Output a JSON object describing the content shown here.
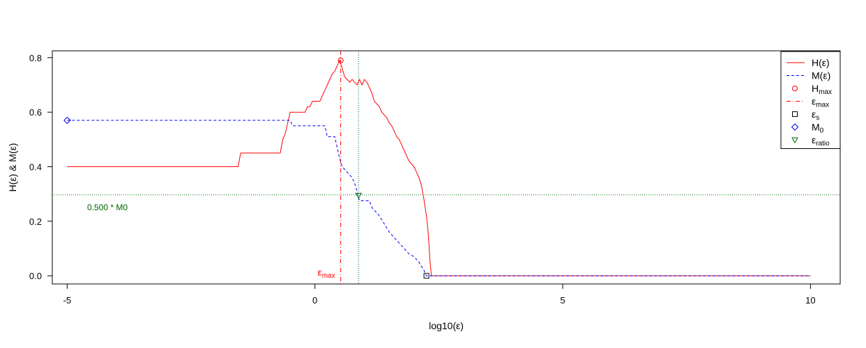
{
  "chart_data": {
    "type": "line",
    "xlabel": "log10(ε)",
    "ylabel": "H(ε)  &  M(ε)",
    "xlim": [
      -5.3,
      10.6
    ],
    "ylim": [
      -0.03,
      0.825
    ],
    "xticks": [
      -5,
      0,
      5,
      10
    ],
    "xtick_labels": [
      "-5",
      "0",
      "5",
      "10"
    ],
    "yticks": [
      0.0,
      0.2,
      0.4,
      0.6,
      0.8
    ],
    "ytick_labels": [
      "0.0",
      "0.2",
      "0.4",
      "0.6",
      "0.8"
    ],
    "grid": false,
    "legend_position": "top-right",
    "series": [
      {
        "key": "H",
        "name": "H(ε)",
        "color": "#ff0000",
        "style": "solid",
        "points": [
          [
            -5.0,
            0.4
          ],
          [
            -1.55,
            0.4
          ],
          [
            -1.5,
            0.45
          ],
          [
            -0.7,
            0.45
          ],
          [
            -0.68,
            0.47
          ],
          [
            -0.65,
            0.5
          ],
          [
            -0.6,
            0.52
          ],
          [
            -0.55,
            0.56
          ],
          [
            -0.5,
            0.6
          ],
          [
            -0.2,
            0.6
          ],
          [
            -0.15,
            0.62
          ],
          [
            -0.1,
            0.62
          ],
          [
            -0.05,
            0.64
          ],
          [
            0.1,
            0.64
          ],
          [
            0.15,
            0.66
          ],
          [
            0.2,
            0.68
          ],
          [
            0.25,
            0.7
          ],
          [
            0.3,
            0.72
          ],
          [
            0.35,
            0.74
          ],
          [
            0.4,
            0.75
          ],
          [
            0.45,
            0.77
          ],
          [
            0.5,
            0.79
          ],
          [
            0.55,
            0.76
          ],
          [
            0.6,
            0.73
          ],
          [
            0.65,
            0.72
          ],
          [
            0.7,
            0.71
          ],
          [
            0.75,
            0.72
          ],
          [
            0.8,
            0.71
          ],
          [
            0.85,
            0.7
          ],
          [
            0.9,
            0.72
          ],
          [
            0.95,
            0.7
          ],
          [
            1.0,
            0.72
          ],
          [
            1.05,
            0.71
          ],
          [
            1.1,
            0.69
          ],
          [
            1.15,
            0.67
          ],
          [
            1.2,
            0.64
          ],
          [
            1.3,
            0.62
          ],
          [
            1.35,
            0.6
          ],
          [
            1.45,
            0.58
          ],
          [
            1.5,
            0.56
          ],
          [
            1.55,
            0.55
          ],
          [
            1.6,
            0.53
          ],
          [
            1.65,
            0.51
          ],
          [
            1.7,
            0.5
          ],
          [
            1.75,
            0.48
          ],
          [
            1.8,
            0.46
          ],
          [
            1.85,
            0.44
          ],
          [
            1.9,
            0.42
          ],
          [
            1.95,
            0.41
          ],
          [
            2.0,
            0.4
          ],
          [
            2.05,
            0.38
          ],
          [
            2.1,
            0.36
          ],
          [
            2.15,
            0.33
          ],
          [
            2.2,
            0.28
          ],
          [
            2.25,
            0.22
          ],
          [
            2.28,
            0.17
          ],
          [
            2.3,
            0.12
          ],
          [
            2.32,
            0.06
          ],
          [
            2.35,
            0.0
          ],
          [
            10.0,
            0.0
          ]
        ]
      },
      {
        "key": "M",
        "name": "M(ε)",
        "color": "#0000ff",
        "style": "dashed",
        "points": [
          [
            -5.0,
            0.57
          ],
          [
            -0.5,
            0.57
          ],
          [
            -0.45,
            0.55
          ],
          [
            0.2,
            0.55
          ],
          [
            0.25,
            0.51
          ],
          [
            0.4,
            0.51
          ],
          [
            0.45,
            0.47
          ],
          [
            0.5,
            0.43
          ],
          [
            0.55,
            0.4
          ],
          [
            0.65,
            0.38
          ],
          [
            0.75,
            0.36
          ],
          [
            0.8,
            0.34
          ],
          [
            0.85,
            0.31
          ],
          [
            0.9,
            0.275
          ],
          [
            1.1,
            0.275
          ],
          [
            1.15,
            0.25
          ],
          [
            1.3,
            0.22
          ],
          [
            1.4,
            0.19
          ],
          [
            1.5,
            0.16
          ],
          [
            1.6,
            0.14
          ],
          [
            1.7,
            0.12
          ],
          [
            1.8,
            0.1
          ],
          [
            1.9,
            0.08
          ],
          [
            2.0,
            0.07
          ],
          [
            2.1,
            0.05
          ],
          [
            2.2,
            0.02
          ],
          [
            2.25,
            0.0
          ],
          [
            10.0,
            0.0
          ]
        ]
      }
    ],
    "markers": {
      "Hmax": {
        "x": 0.52,
        "y": 0.79,
        "color": "#ff0000"
      },
      "eps_s": {
        "x": 2.25,
        "y": 0.0,
        "color": "#000000"
      },
      "M0": {
        "x": -5.0,
        "y": 0.57,
        "color": "#0000ff"
      },
      "eps_ratio": {
        "x": 0.88,
        "y": 0.295,
        "color": "#006400"
      }
    },
    "reference_lines": {
      "eps_max_x": 0.52,
      "eps_ratio_x": 0.88,
      "half_M0_y": 0.297
    },
    "annotations": {
      "half_M0_label": "0.500 * M0",
      "eps_max_label": "ε",
      "eps_max_sub": "max"
    },
    "legend": {
      "entries": [
        {
          "key": "H",
          "label": "H(ε)",
          "sub": "",
          "kind": "line-solid",
          "color": "#ff0000"
        },
        {
          "key": "M",
          "label": "M(ε)",
          "sub": "",
          "kind": "line-dashed",
          "color": "#0000ff"
        },
        {
          "key": "Hmax",
          "label": "H",
          "sub": "max",
          "kind": "circle",
          "color": "#ff0000"
        },
        {
          "key": "epsmax",
          "label": "ε",
          "sub": "max",
          "kind": "line-dashdot",
          "color": "#ff0000"
        },
        {
          "key": "epss",
          "label": "ε",
          "sub": "s",
          "kind": "square",
          "color": "#000000"
        },
        {
          "key": "M0",
          "label": "M",
          "sub": "0",
          "kind": "diamond",
          "color": "#0000ff"
        },
        {
          "key": "epsratio",
          "label": "ε",
          "sub": "ratio",
          "kind": "triangle-down",
          "color": "#006400"
        }
      ]
    }
  }
}
